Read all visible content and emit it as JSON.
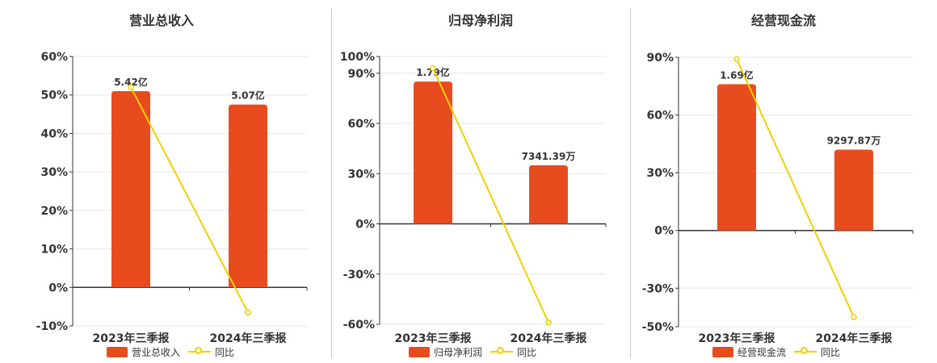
{
  "colors": {
    "bar": "#e84c1e",
    "line": "#f0d000",
    "grid": "#e6e6e6",
    "axis": "#333333",
    "text": "#333333"
  },
  "chart_data": [
    {
      "type": "bar",
      "title": "营业总收入",
      "categories": [
        "2023年三季报",
        "2024年三季报"
      ],
      "series": [
        {
          "name": "营业总收入",
          "type": "bar",
          "values": [
            51,
            47.5
          ],
          "labels": [
            "5.42亿",
            "5.07亿"
          ]
        },
        {
          "name": "同比",
          "type": "line",
          "values": [
            52,
            -6.5
          ]
        }
      ],
      "y_ticks": [
        "60%",
        "50%",
        "40%",
        "30%",
        "20%",
        "10%",
        "0%",
        "-10%"
      ],
      "tick_values": [
        60,
        50,
        40,
        30,
        20,
        10,
        0,
        -10
      ],
      "ylim": [
        -10,
        60
      ],
      "grid": true,
      "legend_position": "bottom"
    },
    {
      "type": "bar",
      "title": "归母净利润",
      "categories": [
        "2023年三季报",
        "2024年三季报"
      ],
      "series": [
        {
          "name": "归母净利润",
          "type": "bar",
          "values": [
            85,
            35
          ],
          "labels": [
            "1.79亿",
            "7341.39万"
          ]
        },
        {
          "name": "同比",
          "type": "line",
          "values": [
            93,
            -59
          ]
        }
      ],
      "y_ticks": [
        "100%",
        "90%",
        "60%",
        "30%",
        "0%",
        "-30%",
        "-60%"
      ],
      "tick_values": [
        100,
        90,
        60,
        30,
        0,
        -30,
        -60
      ],
      "ylim": [
        -60,
        100
      ],
      "grid": true,
      "legend_position": "bottom"
    },
    {
      "type": "bar",
      "title": "经营现金流",
      "categories": [
        "2023年三季报",
        "2024年三季报"
      ],
      "series": [
        {
          "name": "经营现金流",
          "type": "bar",
          "values": [
            76,
            42
          ],
          "labels": [
            "1.69亿",
            "9297.87万"
          ]
        },
        {
          "name": "同比",
          "type": "line",
          "values": [
            89,
            -45
          ]
        }
      ],
      "y_ticks": [
        "90%",
        "60%",
        "30%",
        "0%",
        "-30%",
        "-50%"
      ],
      "tick_values": [
        90,
        60,
        30,
        0,
        -30,
        -50
      ],
      "ylim": [
        -50,
        90
      ],
      "grid": true,
      "legend_position": "bottom"
    }
  ]
}
